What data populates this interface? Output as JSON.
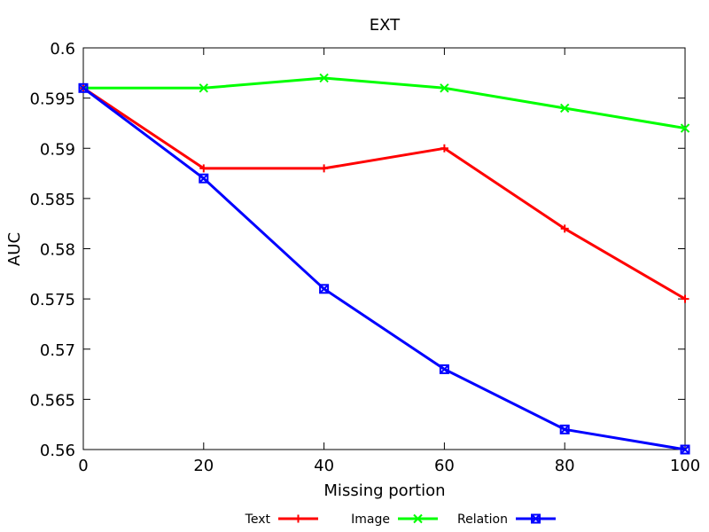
{
  "chart_data": {
    "type": "line",
    "title": "EXT",
    "xlabel": "Missing portion",
    "ylabel": "AUC",
    "xlim": [
      0,
      100
    ],
    "ylim": [
      0.56,
      0.6
    ],
    "x": [
      0,
      20,
      40,
      60,
      80,
      100
    ],
    "xticks": [
      "0",
      "20",
      "40",
      "60",
      "80",
      "100"
    ],
    "yticks": [
      "0.56",
      "0.565",
      "0.57",
      "0.575",
      "0.58",
      "0.585",
      "0.59",
      "0.595",
      "0.6"
    ],
    "grid": false,
    "legend_position": "bottom",
    "series": [
      {
        "name": "Text",
        "color": "#ff0000",
        "marker": "plus",
        "values": [
          0.596,
          0.588,
          0.588,
          0.59,
          0.582,
          0.575
        ]
      },
      {
        "name": "Image",
        "color": "#00ff00",
        "marker": "cross",
        "values": [
          0.596,
          0.596,
          0.597,
          0.596,
          0.594,
          0.592
        ]
      },
      {
        "name": "Relation",
        "color": "#0000ff",
        "marker": "square-cross",
        "values": [
          0.596,
          0.587,
          0.576,
          0.568,
          0.562,
          0.56
        ]
      }
    ]
  }
}
